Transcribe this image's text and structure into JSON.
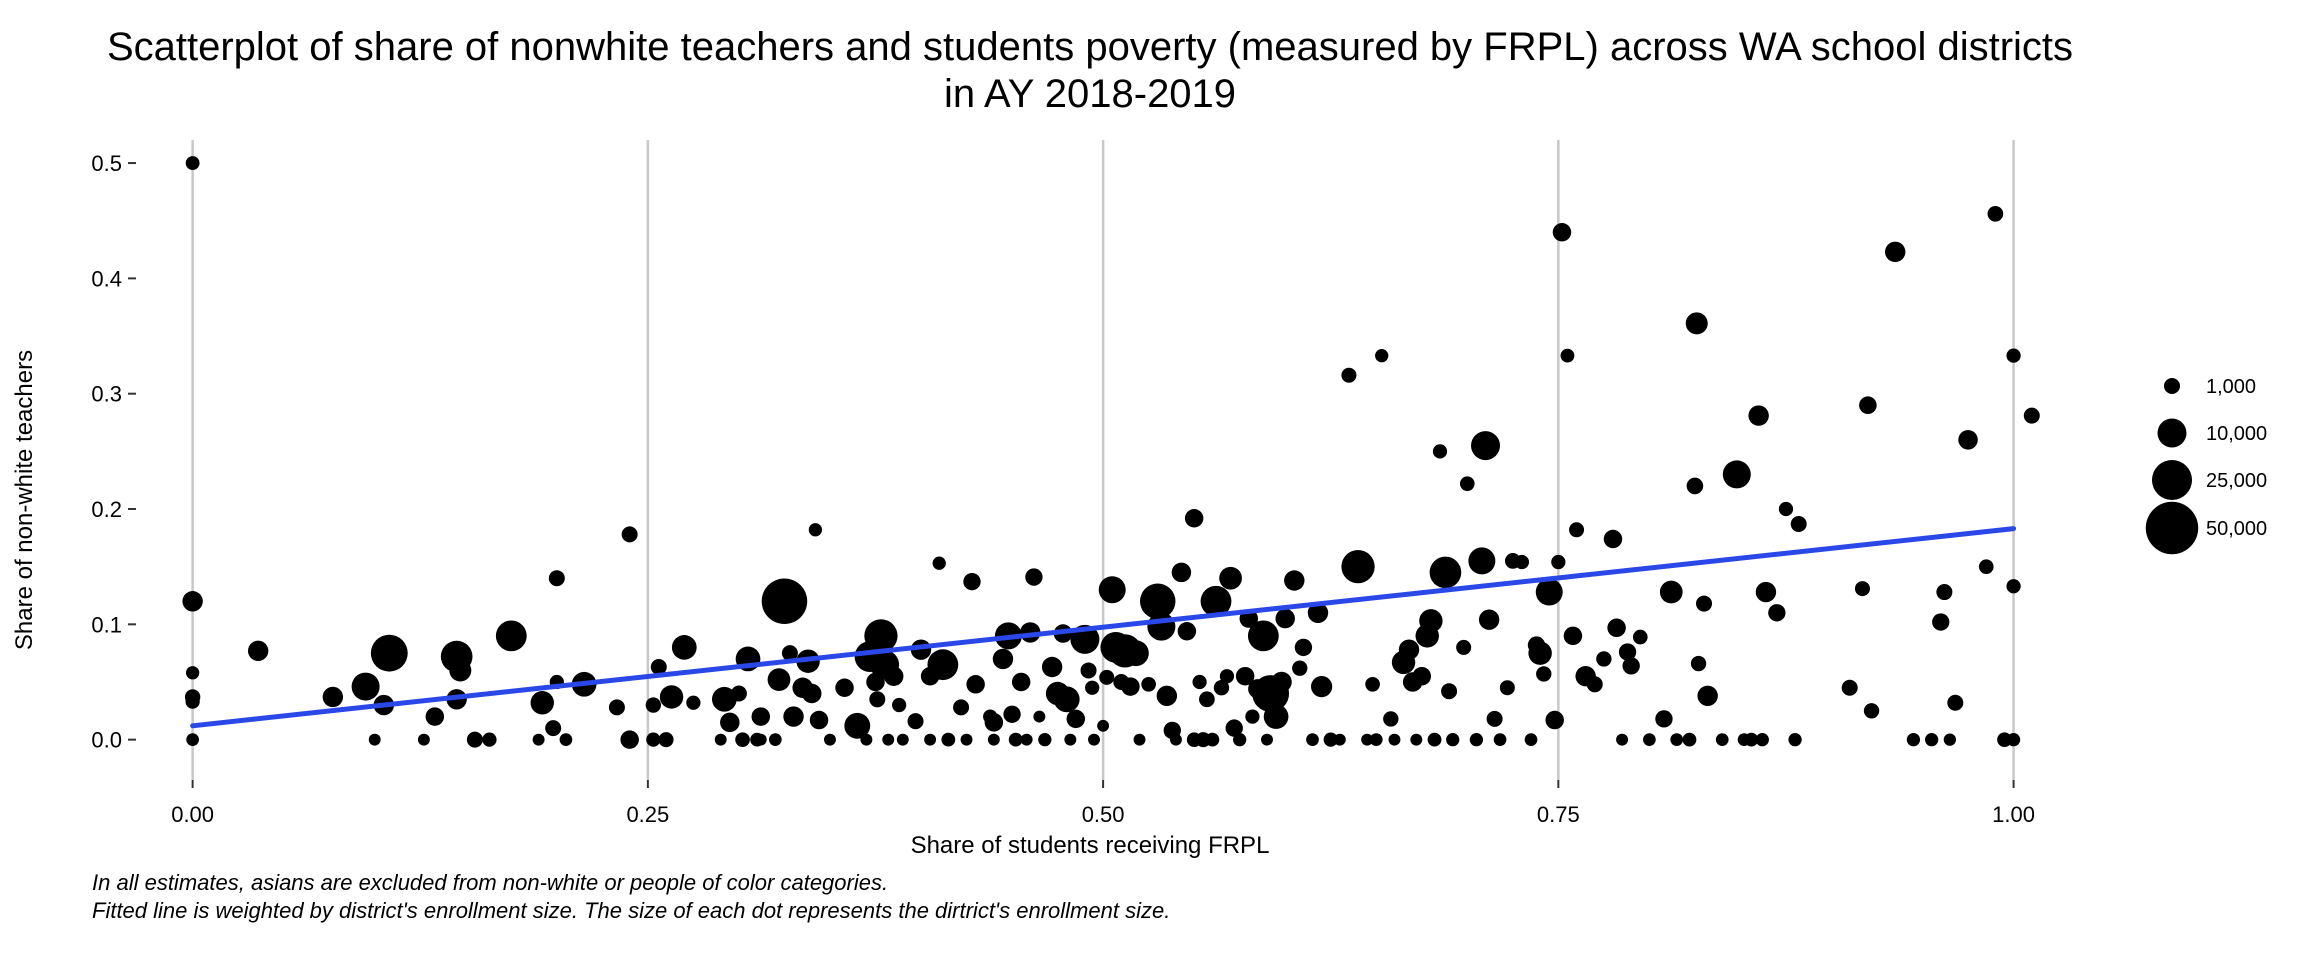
{
  "chart_data": {
    "type": "scatter",
    "title_lines": [
      "Scatterplot of share of nonwhite teachers and students poverty (measured by FRPL) across WA school districts",
      "in AY 2018-2019"
    ],
    "xlabel": "Share of students receiving FRPL",
    "ylabel": "Share of non-white teachers",
    "xlim": [
      -0.03,
      1.02
    ],
    "ylim": [
      -0.035,
      0.52
    ],
    "x_ticks": [
      {
        "value": 0.0,
        "label": "0.00"
      },
      {
        "value": 0.25,
        "label": "0.25"
      },
      {
        "value": 0.5,
        "label": "0.50"
      },
      {
        "value": 0.75,
        "label": "0.75"
      },
      {
        "value": 1.0,
        "label": "1.00"
      }
    ],
    "y_ticks": [
      {
        "value": 0.0,
        "label": "0.0"
      },
      {
        "value": 0.1,
        "label": "0.1"
      },
      {
        "value": 0.2,
        "label": "0.2"
      },
      {
        "value": 0.3,
        "label": "0.3"
      },
      {
        "value": 0.4,
        "label": "0.4"
      },
      {
        "value": 0.5,
        "label": "0.5"
      }
    ],
    "grid": {
      "major_x": true,
      "major_y": false
    },
    "point_color": "#000000",
    "fit_line": {
      "color": "#2a48e8",
      "points": [
        [
          0.0,
          0.012
        ],
        [
          1.0,
          0.183
        ]
      ]
    },
    "legend": {
      "position": "right",
      "entries": [
        {
          "value": 1000,
          "label": "1,000"
        },
        {
          "value": 10000,
          "label": "10,000"
        },
        {
          "value": 25000,
          "label": "25,000"
        },
        {
          "value": 50000,
          "label": "50,000"
        }
      ]
    },
    "captions": [
      "In all estimates, asians are excluded from non-white or people of color categories.",
      "Fitted line is weighted by district's enrollment size. The size of each dot represents the dirtrict's enrollment size."
    ],
    "points": [
      [
        0.0,
        0.5,
        400
      ],
      [
        0.0,
        0.12,
        3000
      ],
      [
        0.0,
        0.058,
        300
      ],
      [
        0.0,
        0.037,
        800
      ],
      [
        0.0,
        0.033,
        500
      ],
      [
        0.0,
        0.0,
        200
      ],
      [
        0.036,
        0.077,
        3000
      ],
      [
        0.077,
        0.037,
        3000
      ],
      [
        0.095,
        0.046,
        9000
      ],
      [
        0.1,
        0.0,
        100
      ],
      [
        0.105,
        0.03,
        3000
      ],
      [
        0.108,
        0.075,
        20000
      ],
      [
        0.127,
        0.0,
        100
      ],
      [
        0.133,
        0.02,
        2000
      ],
      [
        0.145,
        0.035,
        3000
      ],
      [
        0.145,
        0.072,
        13000
      ],
      [
        0.147,
        0.06,
        4000
      ],
      [
        0.155,
        0.0,
        1000
      ],
      [
        0.163,
        0.0,
        500
      ],
      [
        0.175,
        0.09,
        12000
      ],
      [
        0.19,
        0.0,
        100
      ],
      [
        0.192,
        0.032,
        5000
      ],
      [
        0.198,
        0.01,
        1000
      ],
      [
        0.2,
        0.14,
        1000
      ],
      [
        0.2,
        0.05,
        500
      ],
      [
        0.205,
        0.0,
        200
      ],
      [
        0.215,
        0.048,
        6000
      ],
      [
        0.233,
        0.028,
        1000
      ],
      [
        0.24,
        0.0,
        2000
      ],
      [
        0.24,
        0.178,
        1000
      ],
      [
        0.253,
        0.0,
        500
      ],
      [
        0.253,
        0.03,
        800
      ],
      [
        0.256,
        0.063,
        1000
      ],
      [
        0.26,
        0.0,
        700
      ],
      [
        0.263,
        0.037,
        5000
      ],
      [
        0.27,
        0.08,
        6000
      ],
      [
        0.275,
        0.032,
        500
      ],
      [
        0.29,
        0.0,
        100
      ],
      [
        0.292,
        0.035,
        6000
      ],
      [
        0.295,
        0.015,
        2500
      ],
      [
        0.3,
        0.04,
        1000
      ],
      [
        0.302,
        0.0,
        600
      ],
      [
        0.305,
        0.07,
        6000
      ],
      [
        0.31,
        0.0,
        400
      ],
      [
        0.312,
        0.02,
        2000
      ],
      [
        0.312,
        0.0,
        100
      ],
      [
        0.32,
        0.0,
        200
      ],
      [
        0.322,
        0.052,
        4500
      ],
      [
        0.325,
        0.12,
        35000
      ],
      [
        0.328,
        0.075,
        1000
      ],
      [
        0.33,
        0.02,
        3000
      ],
      [
        0.335,
        0.045,
        3000
      ],
      [
        0.338,
        0.068,
        5000
      ],
      [
        0.34,
        0.04,
        2500
      ],
      [
        0.342,
        0.182,
        300
      ],
      [
        0.344,
        0.017,
        2000
      ],
      [
        0.35,
        0.0,
        100
      ],
      [
        0.358,
        0.045,
        2000
      ],
      [
        0.365,
        0.012,
        7000
      ],
      [
        0.37,
        0.0,
        100
      ],
      [
        0.372,
        0.072,
        12000
      ],
      [
        0.375,
        0.05,
        2000
      ],
      [
        0.376,
        0.035,
        1000
      ],
      [
        0.378,
        0.09,
        15000
      ],
      [
        0.38,
        0.065,
        10000
      ],
      [
        0.382,
        0.0,
        100
      ],
      [
        0.385,
        0.055,
        2500
      ],
      [
        0.388,
        0.03,
        500
      ],
      [
        0.39,
        0.0,
        100
      ],
      [
        0.397,
        0.016,
        1000
      ],
      [
        0.4,
        0.078,
        3000
      ],
      [
        0.405,
        0.055,
        2000
      ],
      [
        0.405,
        0.0,
        100
      ],
      [
        0.41,
        0.153,
        300
      ],
      [
        0.412,
        0.065,
        12000
      ],
      [
        0.415,
        0.0,
        400
      ],
      [
        0.422,
        0.028,
        1000
      ],
      [
        0.425,
        0.0,
        100
      ],
      [
        0.428,
        0.137,
        1500
      ],
      [
        0.43,
        0.048,
        2000
      ],
      [
        0.438,
        0.02,
        500
      ],
      [
        0.44,
        0.0,
        100
      ],
      [
        0.44,
        0.015,
        2000
      ],
      [
        0.445,
        0.07,
        3000
      ],
      [
        0.448,
        0.09,
        8000
      ],
      [
        0.45,
        0.022,
        1500
      ],
      [
        0.452,
        0.0,
        400
      ],
      [
        0.455,
        0.05,
        2000
      ],
      [
        0.458,
        0.0,
        100
      ],
      [
        0.46,
        0.093,
        3000
      ],
      [
        0.462,
        0.141,
        1500
      ],
      [
        0.465,
        0.02,
        100
      ],
      [
        0.468,
        0.0,
        300
      ],
      [
        0.472,
        0.063,
        3000
      ],
      [
        0.475,
        0.04,
        5000
      ],
      [
        0.478,
        0.092,
        2000
      ],
      [
        0.48,
        0.035,
        7000
      ],
      [
        0.482,
        0.0,
        100
      ],
      [
        0.485,
        0.018,
        2000
      ],
      [
        0.49,
        0.087,
        10000
      ],
      [
        0.492,
        0.06,
        1000
      ],
      [
        0.494,
        0.045,
        500
      ],
      [
        0.495,
        0.0,
        100
      ],
      [
        0.5,
        0.012,
        100
      ],
      [
        0.502,
        0.054,
        700
      ],
      [
        0.505,
        0.13,
        8000
      ],
      [
        0.507,
        0.08,
        12000
      ],
      [
        0.51,
        0.05,
        1000
      ],
      [
        0.512,
        0.077,
        15000
      ],
      [
        0.515,
        0.046,
        2000
      ],
      [
        0.518,
        0.075,
        7000
      ],
      [
        0.52,
        0.0,
        100
      ],
      [
        0.525,
        0.048,
        600
      ],
      [
        0.53,
        0.12,
        18000
      ],
      [
        0.532,
        0.098,
        9000
      ],
      [
        0.535,
        0.038,
        3000
      ],
      [
        0.538,
        0.008,
        1500
      ],
      [
        0.54,
        0.0,
        100
      ],
      [
        0.543,
        0.145,
        2500
      ],
      [
        0.546,
        0.094,
        2000
      ],
      [
        0.55,
        0.0,
        600
      ],
      [
        0.55,
        0.192,
        2000
      ],
      [
        0.553,
        0.05,
        500
      ],
      [
        0.555,
        0.0,
        700
      ],
      [
        0.557,
        0.035,
        900
      ],
      [
        0.56,
        0.0,
        400
      ],
      [
        0.562,
        0.12,
        12000
      ],
      [
        0.565,
        0.045,
        800
      ],
      [
        0.568,
        0.055,
        500
      ],
      [
        0.57,
        0.14,
        4500
      ],
      [
        0.572,
        0.01,
        1500
      ],
      [
        0.575,
        0.0,
        300
      ],
      [
        0.578,
        0.055,
        2000
      ],
      [
        0.58,
        0.105,
        2000
      ],
      [
        0.582,
        0.02,
        500
      ],
      [
        0.585,
        0.044,
        2500
      ],
      [
        0.588,
        0.09,
        12000
      ],
      [
        0.59,
        0.0,
        100
      ],
      [
        0.592,
        0.04,
        20000
      ],
      [
        0.595,
        0.02,
        6000
      ],
      [
        0.598,
        0.05,
        3000
      ],
      [
        0.6,
        0.105,
        2500
      ],
      [
        0.605,
        0.138,
        3000
      ],
      [
        0.608,
        0.062,
        800
      ],
      [
        0.61,
        0.08,
        1500
      ],
      [
        0.615,
        0.0,
        200
      ],
      [
        0.618,
        0.11,
        3000
      ],
      [
        0.62,
        0.046,
        3500
      ],
      [
        0.625,
        0.0,
        500
      ],
      [
        0.63,
        0.0,
        100
      ],
      [
        0.635,
        0.316,
        700
      ],
      [
        0.64,
        0.15,
        15000
      ],
      [
        0.645,
        0.0,
        100
      ],
      [
        0.648,
        0.048,
        600
      ],
      [
        0.65,
        0.0,
        200
      ],
      [
        0.653,
        0.333,
        300
      ],
      [
        0.658,
        0.018,
        800
      ],
      [
        0.66,
        0.0,
        100
      ],
      [
        0.665,
        0.067,
        5000
      ],
      [
        0.668,
        0.078,
        3000
      ],
      [
        0.67,
        0.05,
        2500
      ],
      [
        0.672,
        0.0,
        100
      ],
      [
        0.675,
        0.055,
        2000
      ],
      [
        0.678,
        0.09,
        5000
      ],
      [
        0.68,
        0.103,
        5000
      ],
      [
        0.682,
        0.0,
        400
      ],
      [
        0.685,
        0.25,
        500
      ],
      [
        0.688,
        0.145,
        13000
      ],
      [
        0.69,
        0.042,
        1000
      ],
      [
        0.692,
        0.0,
        300
      ],
      [
        0.698,
        0.08,
        700
      ],
      [
        0.7,
        0.222,
        600
      ],
      [
        0.705,
        0.0,
        300
      ],
      [
        0.708,
        0.155,
        8000
      ],
      [
        0.71,
        0.255,
        10000
      ],
      [
        0.712,
        0.104,
        3000
      ],
      [
        0.715,
        0.018,
        1000
      ],
      [
        0.718,
        0.0,
        200
      ],
      [
        0.722,
        0.045,
        700
      ],
      [
        0.725,
        0.155,
        900
      ],
      [
        0.73,
        0.154,
        500
      ],
      [
        0.735,
        0.0,
        200
      ],
      [
        0.738,
        0.082,
        1500
      ],
      [
        0.74,
        0.075,
        5000
      ],
      [
        0.742,
        0.057,
        800
      ],
      [
        0.745,
        0.128,
        8000
      ],
      [
        0.748,
        0.017,
        2000
      ],
      [
        0.75,
        0.154,
        500
      ],
      [
        0.752,
        0.44,
        2000
      ],
      [
        0.755,
        0.333,
        400
      ],
      [
        0.758,
        0.09,
        2000
      ],
      [
        0.76,
        0.182,
        700
      ],
      [
        0.765,
        0.055,
        3000
      ],
      [
        0.77,
        0.048,
        1000
      ],
      [
        0.775,
        0.07,
        800
      ],
      [
        0.78,
        0.174,
        2000
      ],
      [
        0.782,
        0.097,
        2000
      ],
      [
        0.785,
        0.0,
        100
      ],
      [
        0.788,
        0.076,
        1500
      ],
      [
        0.79,
        0.064,
        1500
      ],
      [
        0.795,
        0.089,
        600
      ],
      [
        0.8,
        0.0,
        200
      ],
      [
        0.808,
        0.018,
        1500
      ],
      [
        0.812,
        0.128,
        4500
      ],
      [
        0.815,
        0.0,
        200
      ],
      [
        0.822,
        0.0,
        400
      ],
      [
        0.825,
        0.22,
        1200
      ],
      [
        0.826,
        0.361,
        4000
      ],
      [
        0.827,
        0.066,
        800
      ],
      [
        0.83,
        0.118,
        1000
      ],
      [
        0.832,
        0.038,
        3000
      ],
      [
        0.84,
        0.0,
        200
      ],
      [
        0.848,
        0.23,
        9000
      ],
      [
        0.852,
        0.0,
        200
      ],
      [
        0.856,
        0.0,
        400
      ],
      [
        0.86,
        0.281,
        3000
      ],
      [
        0.862,
        0.0,
        300
      ],
      [
        0.864,
        0.128,
        3000
      ],
      [
        0.87,
        0.11,
        1500
      ],
      [
        0.875,
        0.2,
        500
      ],
      [
        0.88,
        0.0,
        300
      ],
      [
        0.882,
        0.187,
        1000
      ],
      [
        0.91,
        0.045,
        1000
      ],
      [
        0.917,
        0.131,
        700
      ],
      [
        0.92,
        0.29,
        1600
      ],
      [
        0.922,
        0.025,
        800
      ],
      [
        0.935,
        0.423,
        3000
      ],
      [
        0.945,
        0.0,
        300
      ],
      [
        0.955,
        0.0,
        300
      ],
      [
        0.96,
        0.102,
        1500
      ],
      [
        0.962,
        0.128,
        1000
      ],
      [
        0.968,
        0.032,
        1000
      ],
      [
        0.975,
        0.26,
        2500
      ],
      [
        0.985,
        0.15,
        600
      ],
      [
        0.99,
        0.456,
        900
      ],
      [
        0.995,
        0.0,
        600
      ],
      [
        1.01,
        0.281,
        1000
      ],
      [
        0.965,
        0.0,
        150
      ],
      [
        1.0,
        0.333,
        500
      ],
      [
        1.0,
        0.133,
        500
      ],
      [
        1.0,
        0.0,
        300
      ]
    ]
  }
}
